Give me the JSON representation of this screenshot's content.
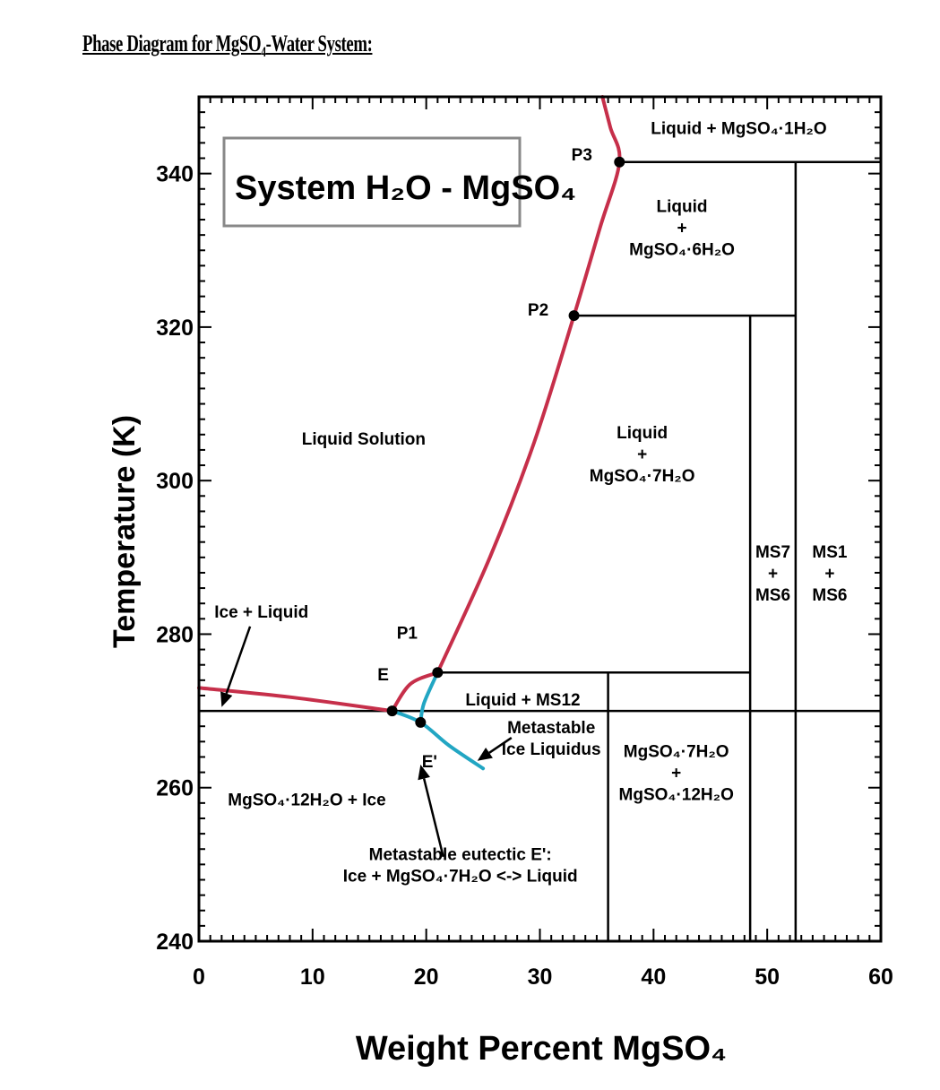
{
  "heading": {
    "pre": "Phase Diagram for MgSO",
    "sub": "4",
    "post": "-Water System:"
  },
  "chart_data": {
    "type": "phase-diagram",
    "xlabel": "Weight Percent MgSO₄",
    "ylabel": "Temperature (K)",
    "xlim": [
      0,
      60
    ],
    "ylim": [
      240,
      350
    ],
    "x_ticks": [
      "0",
      "10",
      "20",
      "30",
      "40",
      "50",
      "60"
    ],
    "y_ticks": [
      "240",
      "260",
      "280",
      "300",
      "320",
      "340"
    ],
    "title_box": "System H₂O - MgSO₄",
    "colors": {
      "liquidus": "#c62f4a",
      "metastable": "#22a6c3",
      "boundary": "#000000"
    },
    "special_points": [
      {
        "label": "E",
        "x": 17,
        "y": 270
      },
      {
        "label": "E'",
        "x": 19.5,
        "y": 268.5
      },
      {
        "label": "P1",
        "x": 21,
        "y": 275
      },
      {
        "label": "P2",
        "x": 33,
        "y": 321.5
      },
      {
        "label": "P3",
        "x": 37,
        "y": 341.5
      }
    ],
    "curves": [
      {
        "kind": "liquidus",
        "points": [
          [
            0,
            273
          ],
          [
            8,
            271.8
          ],
          [
            17,
            270
          ]
        ]
      },
      {
        "kind": "liquidus",
        "points": [
          [
            17,
            270
          ],
          [
            18.6,
            273.5
          ],
          [
            21,
            275
          ]
        ]
      },
      {
        "kind": "liquidus",
        "points": [
          [
            21,
            275
          ],
          [
            25.6,
            290
          ],
          [
            29.5,
            305
          ],
          [
            33,
            321.5
          ],
          [
            35.3,
            333
          ],
          [
            37,
            341.5
          ],
          [
            36.2,
            346
          ],
          [
            35.5,
            350
          ]
        ]
      },
      {
        "kind": "metastable",
        "points": [
          [
            17,
            270
          ],
          [
            19.5,
            268.5
          ],
          [
            22,
            265.5
          ],
          [
            25,
            262.5
          ]
        ]
      },
      {
        "kind": "metastable",
        "points": [
          [
            19.5,
            268.5
          ],
          [
            19.8,
            271
          ],
          [
            21,
            275
          ]
        ]
      }
    ],
    "boundaries": [
      {
        "x": [
          0,
          60
        ],
        "y": 270
      },
      {
        "x": [
          21,
          48.5
        ],
        "y": 275
      },
      {
        "x": [
          33,
          52.5
        ],
        "y": 321.5
      },
      {
        "x": [
          37,
          60
        ],
        "y": 341.5
      },
      {
        "x": 36,
        "y": [
          240,
          275
        ]
      },
      {
        "x": 48.5,
        "y": [
          240,
          321.5
        ]
      },
      {
        "x": 52.5,
        "y": [
          240,
          341.5
        ]
      }
    ],
    "region_labels": [
      {
        "lines": [
          "Liquid + MgSO₄·1H₂O"
        ],
        "x": 47.5,
        "y": 346
      },
      {
        "lines": [
          "Liquid",
          "+",
          "MgSO₄·6H₂O"
        ],
        "x": 42.5,
        "y": 333
      },
      {
        "lines": [
          "Liquid Solution"
        ],
        "x": 14.5,
        "y": 305.5
      },
      {
        "lines": [
          "Liquid",
          "+",
          "MgSO₄·7H₂O"
        ],
        "x": 39,
        "y": 303.5
      },
      {
        "lines": [
          "MS7",
          "+",
          "MS6"
        ],
        "x": 50.5,
        "y": 288
      },
      {
        "lines": [
          "MS1",
          "+",
          "MS6"
        ],
        "x": 55.5,
        "y": 288
      },
      {
        "lines": [
          "Ice + Liquid"
        ],
        "x": 5.5,
        "y": 283
      },
      {
        "lines": [
          "Liquid + MS12"
        ],
        "x": 28.5,
        "y": 271.5
      },
      {
        "lines": [
          "Metastable",
          "Ice Liquidus"
        ],
        "x": 31,
        "y": 266.5
      },
      {
        "lines": [
          "MgSO₄·7H₂O",
          "+",
          "MgSO₄·12H₂O"
        ],
        "x": 42,
        "y": 262
      },
      {
        "lines": [
          "MgSO₄·12H₂O + Ice"
        ],
        "x": 9.5,
        "y": 258.5
      },
      {
        "lines": [
          "Metastable eutectic E':",
          "Ice + MgSO₄·7H₂O <-> Liquid"
        ],
        "x": 23,
        "y": 250
      }
    ],
    "arrows": [
      {
        "from": [
          4.5,
          281
        ],
        "to": [
          2,
          270.5
        ]
      },
      {
        "from": [
          21.5,
          251
        ],
        "to": [
          19.5,
          263
        ]
      },
      {
        "from": [
          27.5,
          266.5
        ],
        "to": [
          24.5,
          263.5
        ]
      }
    ]
  }
}
